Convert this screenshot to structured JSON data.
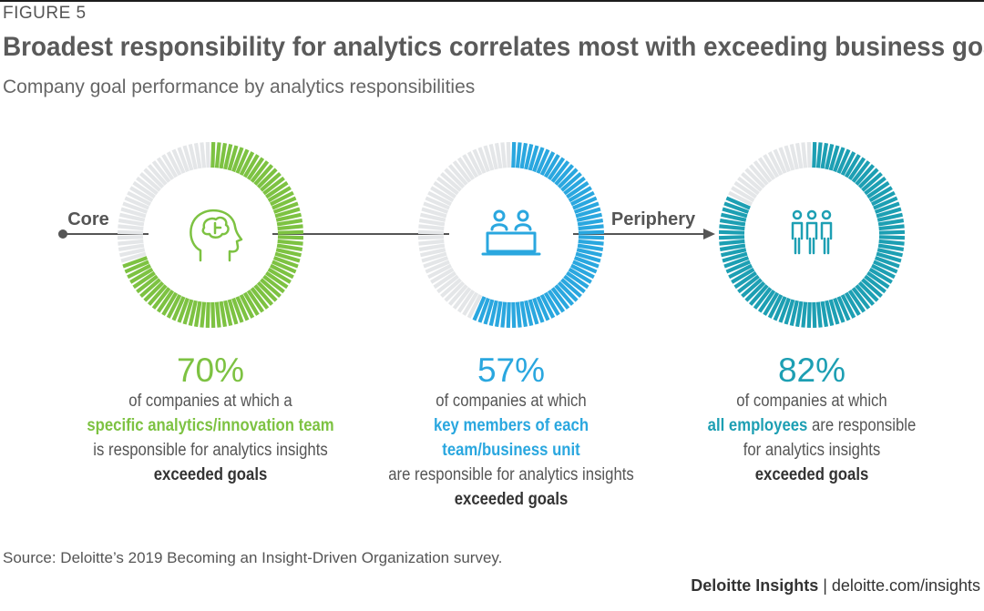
{
  "figure_label": "FIGURE 5",
  "title": "Broadest responsibility for analytics correlates most with exceeding business goals",
  "subtitle": "Company goal performance by analytics responsibilities",
  "axis": {
    "start_label": "Core",
    "end_label": "Periphery"
  },
  "colors": {
    "green": "#7dc242",
    "blue": "#2aa7df",
    "teal": "#1d9fb3",
    "gray": "#e4e6e8",
    "dark": "#555555"
  },
  "chart_data": {
    "type": "pie",
    "title": "Broadest responsibility for analytics correlates most with exceeding business goals",
    "categories": [
      "specific analytics/innovation team",
      "key members of each team/business unit",
      "all employees"
    ],
    "values": [
      70,
      57,
      82
    ],
    "unit": "%",
    "icons": [
      "head-brain-icon",
      "team-desk-icon",
      "three-people-icon"
    ],
    "colors": [
      "#7dc242",
      "#2aa7df",
      "#1d9fb3"
    ]
  },
  "columns": [
    {
      "pct": "70%",
      "line1": "of companies at which a",
      "highlight1": "specific analytics/innovation team",
      "line3": "is responsible for analytics insights",
      "result": "exceeded goals"
    },
    {
      "pct": "57%",
      "line1": "of companies at which",
      "highlight1": "key members of each",
      "highlight2": "team/business unit",
      "line3": "are responsible for analytics insights",
      "result": "exceeded goals"
    },
    {
      "pct": "82%",
      "line1": "of companies at which",
      "highlight1": "all employees",
      "line2_rest": " are responsible",
      "line3": "for analytics insights",
      "result": "exceeded goals"
    }
  ],
  "source": "Source: Deloitte’s 2019 Becoming an Insight-Driven Organization survey.",
  "credit": {
    "brand": "Deloitte Insights",
    "separator": " | ",
    "url": "deloitte.com/insights"
  }
}
